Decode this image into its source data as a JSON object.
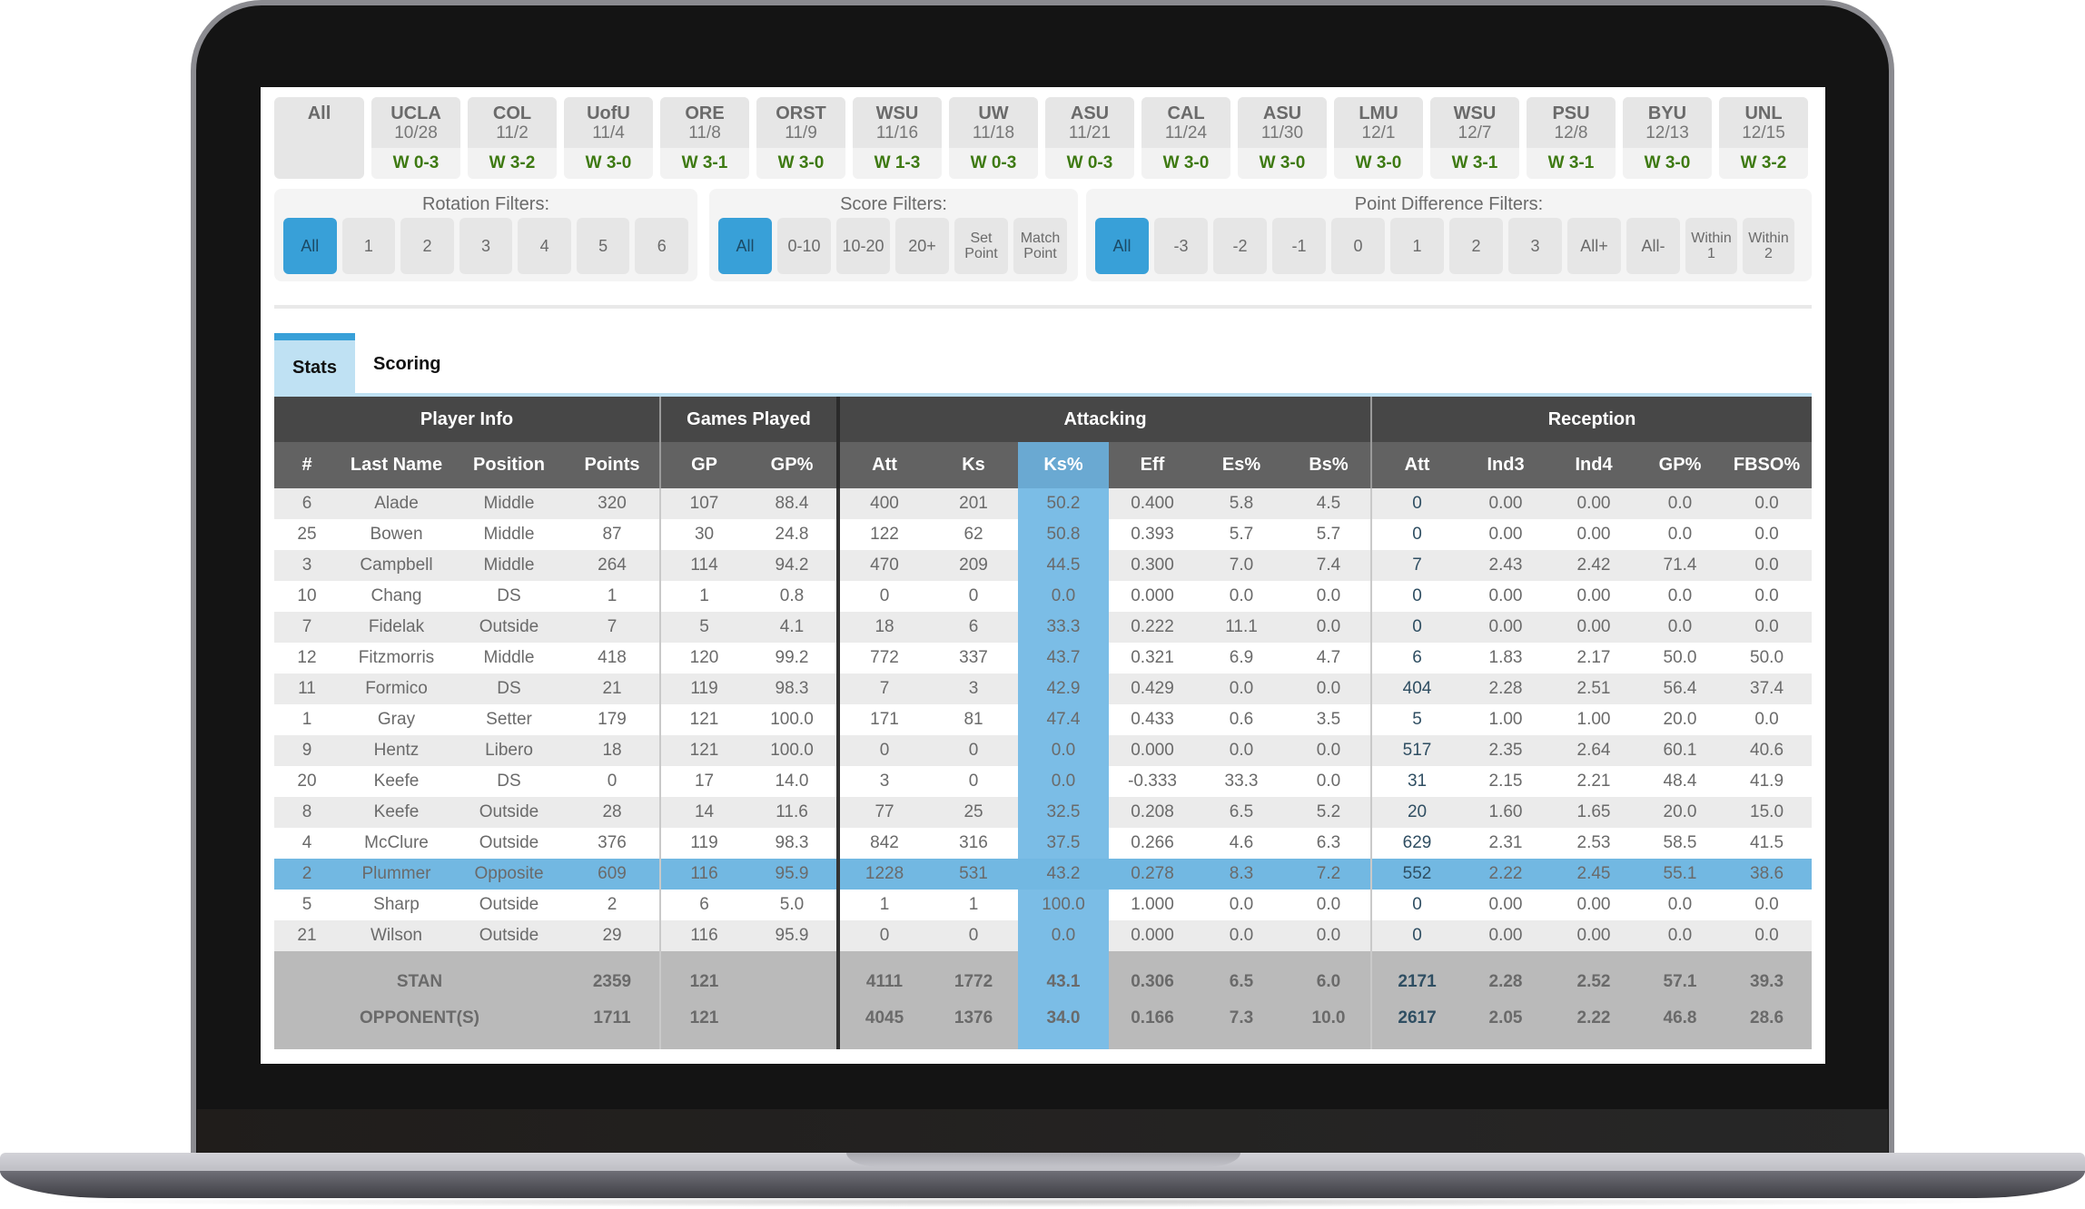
{
  "games": [
    {
      "opp": "All",
      "date": "",
      "result": ""
    },
    {
      "opp": "UCLA",
      "date": "10/28",
      "result": "W 0-3"
    },
    {
      "opp": "COL",
      "date": "11/2",
      "result": "W 3-2"
    },
    {
      "opp": "UofU",
      "date": "11/4",
      "result": "W 3-0"
    },
    {
      "opp": "ORE",
      "date": "11/8",
      "result": "W 3-1"
    },
    {
      "opp": "ORST",
      "date": "11/9",
      "result": "W 3-0"
    },
    {
      "opp": "WSU",
      "date": "11/16",
      "result": "W 1-3"
    },
    {
      "opp": "UW",
      "date": "11/18",
      "result": "W 0-3"
    },
    {
      "opp": "ASU",
      "date": "11/21",
      "result": "W 0-3"
    },
    {
      "opp": "CAL",
      "date": "11/24",
      "result": "W 3-0"
    },
    {
      "opp": "ASU",
      "date": "11/30",
      "result": "W 3-0"
    },
    {
      "opp": "LMU",
      "date": "12/1",
      "result": "W 3-0"
    },
    {
      "opp": "WSU",
      "date": "12/7",
      "result": "W 3-1"
    },
    {
      "opp": "PSU",
      "date": "12/8",
      "result": "W 3-1"
    },
    {
      "opp": "BYU",
      "date": "12/13",
      "result": "W 3-0"
    },
    {
      "opp": "UNL",
      "date": "12/15",
      "result": "W 3-2"
    }
  ],
  "filters": {
    "rotation": {
      "title": "Rotation Filters:",
      "options": [
        "All",
        "1",
        "2",
        "3",
        "4",
        "5",
        "6"
      ],
      "active": "All"
    },
    "score": {
      "title": "Score Filters:",
      "options": [
        "All",
        "0-10",
        "10-20",
        "20+",
        "Set Point",
        "Match Point"
      ],
      "active": "All"
    },
    "point_diff": {
      "title": "Point Difference Filters:",
      "options": [
        "All",
        "-3",
        "-2",
        "-1",
        "0",
        "1",
        "2",
        "3",
        "All+",
        "All-",
        "Within 1",
        "Within 2"
      ],
      "active": "All"
    }
  },
  "tabs": [
    {
      "label": "Stats",
      "active": true
    },
    {
      "label": "Scoring",
      "active": false
    }
  ],
  "table": {
    "groups": [
      {
        "label": "Player Info",
        "span": 4
      },
      {
        "label": "Games Played",
        "span": 2
      },
      {
        "label": "Attacking",
        "span": 6
      },
      {
        "label": "Reception",
        "span": 5
      }
    ],
    "columns": [
      "#",
      "Last Name",
      "Position",
      "Points",
      "GP",
      "GP%",
      "Att",
      "Ks",
      "Ks%",
      "Eff",
      "Es%",
      "Bs%",
      "Att",
      "Ind3",
      "Ind4",
      "GP%",
      "FBSO%"
    ],
    "sorted_column": "Ks%",
    "rows": [
      [
        "6",
        "Alade",
        "Middle",
        "320",
        "107",
        "88.4",
        "400",
        "201",
        "50.2",
        "0.400",
        "5.8",
        "4.5",
        "0",
        "0.00",
        "0.00",
        "0.0",
        "0.0"
      ],
      [
        "25",
        "Bowen",
        "Middle",
        "87",
        "30",
        "24.8",
        "122",
        "62",
        "50.8",
        "0.393",
        "5.7",
        "5.7",
        "0",
        "0.00",
        "0.00",
        "0.0",
        "0.0"
      ],
      [
        "3",
        "Campbell",
        "Middle",
        "264",
        "114",
        "94.2",
        "470",
        "209",
        "44.5",
        "0.300",
        "7.0",
        "7.4",
        "7",
        "2.43",
        "2.42",
        "71.4",
        "0.0"
      ],
      [
        "10",
        "Chang",
        "DS",
        "1",
        "1",
        "0.8",
        "0",
        "0",
        "0.0",
        "0.000",
        "0.0",
        "0.0",
        "0",
        "0.00",
        "0.00",
        "0.0",
        "0.0"
      ],
      [
        "7",
        "Fidelak",
        "Outside",
        "7",
        "5",
        "4.1",
        "18",
        "6",
        "33.3",
        "0.222",
        "11.1",
        "0.0",
        "0",
        "0.00",
        "0.00",
        "0.0",
        "0.0"
      ],
      [
        "12",
        "Fitzmorris",
        "Middle",
        "418",
        "120",
        "99.2",
        "772",
        "337",
        "43.7",
        "0.321",
        "6.9",
        "4.7",
        "6",
        "1.83",
        "2.17",
        "50.0",
        "50.0"
      ],
      [
        "11",
        "Formico",
        "DS",
        "21",
        "119",
        "98.3",
        "7",
        "3",
        "42.9",
        "0.429",
        "0.0",
        "0.0",
        "404",
        "2.28",
        "2.51",
        "56.4",
        "37.4"
      ],
      [
        "1",
        "Gray",
        "Setter",
        "179",
        "121",
        "100.0",
        "171",
        "81",
        "47.4",
        "0.433",
        "0.6",
        "3.5",
        "5",
        "1.00",
        "1.00",
        "20.0",
        "0.0"
      ],
      [
        "9",
        "Hentz",
        "Libero",
        "18",
        "121",
        "100.0",
        "0",
        "0",
        "0.0",
        "0.000",
        "0.0",
        "0.0",
        "517",
        "2.35",
        "2.64",
        "60.1",
        "40.6"
      ],
      [
        "20",
        "Keefe",
        "DS",
        "0",
        "17",
        "14.0",
        "3",
        "0",
        "0.0",
        "-0.333",
        "33.3",
        "0.0",
        "31",
        "2.15",
        "2.21",
        "48.4",
        "41.9"
      ],
      [
        "8",
        "Keefe",
        "Outside",
        "28",
        "14",
        "11.6",
        "77",
        "25",
        "32.5",
        "0.208",
        "6.5",
        "5.2",
        "20",
        "1.60",
        "1.65",
        "20.0",
        "15.0"
      ],
      [
        "4",
        "McClure",
        "Outside",
        "376",
        "119",
        "98.3",
        "842",
        "316",
        "37.5",
        "0.266",
        "4.6",
        "6.3",
        "629",
        "2.31",
        "2.53",
        "58.5",
        "41.5"
      ],
      [
        "2",
        "Plummer",
        "Opposite",
        "609",
        "116",
        "95.9",
        "1228",
        "531",
        "43.2",
        "0.278",
        "8.3",
        "7.2",
        "552",
        "2.22",
        "2.45",
        "55.1",
        "38.6"
      ],
      [
        "5",
        "Sharp",
        "Outside",
        "2",
        "6",
        "5.0",
        "1",
        "1",
        "100.0",
        "1.000",
        "0.0",
        "0.0",
        "0",
        "0.00",
        "0.00",
        "0.0",
        "0.0"
      ],
      [
        "21",
        "Wilson",
        "Outside",
        "29",
        "116",
        "95.9",
        "0",
        "0",
        "0.0",
        "0.000",
        "0.0",
        "0.0",
        "0",
        "0.00",
        "0.00",
        "0.0",
        "0.0"
      ]
    ],
    "selected_row": 12,
    "totals": [
      {
        "label": "STAN",
        "points": "2359",
        "gp": "121",
        "gp_pct": "",
        "att": "4111",
        "ks": "1772",
        "ks_pct": "43.1",
        "eff": "0.306",
        "es_pct": "6.5",
        "bs_pct": "6.0",
        "rec_att": "2171",
        "ind3": "2.28",
        "ind4": "2.52",
        "rec_gp_pct": "57.1",
        "fbso_pct": "39.3"
      },
      {
        "label": "OPPONENT(S)",
        "points": "1711",
        "gp": "121",
        "gp_pct": "",
        "att": "4045",
        "ks": "1376",
        "ks_pct": "34.0",
        "eff": "0.166",
        "es_pct": "7.3",
        "bs_pct": "10.0",
        "rec_att": "2617",
        "ind3": "2.05",
        "ind4": "2.22",
        "rec_gp_pct": "46.8",
        "fbso_pct": "28.6"
      }
    ]
  },
  "colors": {
    "accent_blue": "#38a0d8",
    "ks_column": "#7bbde6",
    "selected_row": "#72b8e2",
    "win_green": "#3e7a12",
    "header_dark": "#474747",
    "header_mid": "#626262",
    "totals_bg": "#bababa"
  }
}
